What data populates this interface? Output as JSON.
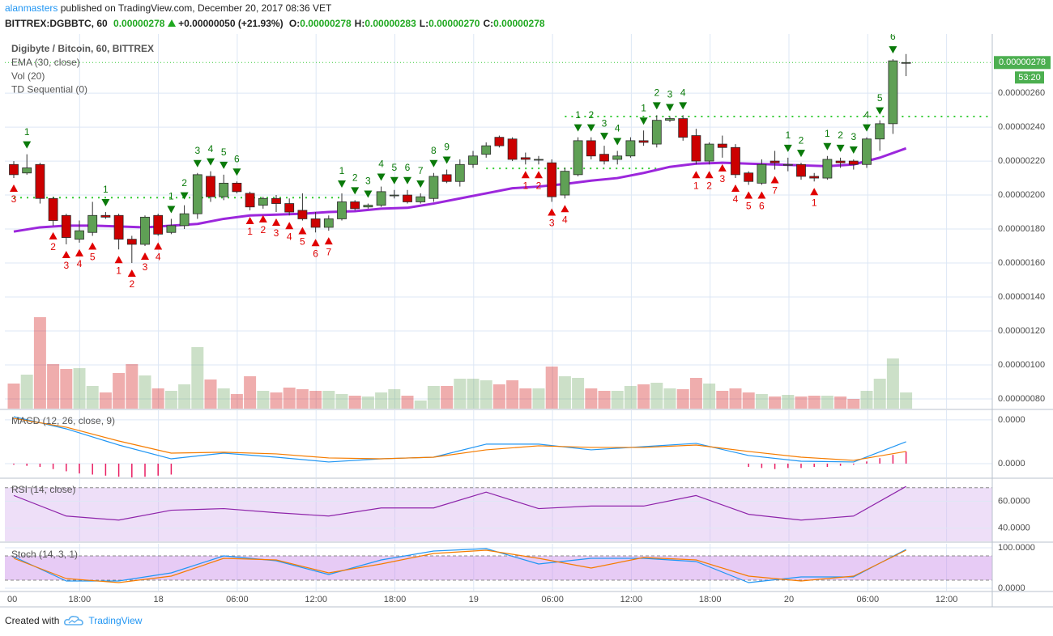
{
  "header": {
    "author": "alanmasters",
    "published": "published on TradingView.com, December 20, 2017 08:36 VET"
  },
  "quote": {
    "symbol": "BITTREX:DGBBTC, 60",
    "last": "0.00000278",
    "change": "+0.00000050 (+21.93%)",
    "ohlc": [
      {
        "key": "O:",
        "value": "0.00000278"
      },
      {
        "key": "H:",
        "value": "0.00000283"
      },
      {
        "key": "L:",
        "value": "0.00000270"
      },
      {
        "key": "C:",
        "value": "0.00000278"
      }
    ]
  },
  "footer": {
    "created": "Created with",
    "brand": "TradingView"
  },
  "chart_data": [
    {
      "type": "candlestick",
      "title": "Digibyte / Bitcoin, 60, BITTREX",
      "indicators": [
        "EMA (30, close)",
        "Vol (20)",
        "TD Sequential (0)"
      ],
      "up_color": "#5fa055",
      "down_color": "#cc0000",
      "open": [
        2.18e-06,
        2.13e-06,
        2.18e-06,
        1.98e-06,
        1.88e-06,
        1.74e-06,
        1.78e-06,
        1.88e-06,
        1.88e-06,
        1.74e-06,
        1.71e-06,
        1.88e-06,
        1.78e-06,
        1.82e-06,
        1.89e-06,
        2.11e-06,
        1.99e-06,
        2.07e-06,
        2.01e-06,
        1.94e-06,
        1.98e-06,
        1.95e-06,
        1.91e-06,
        1.86e-06,
        1.81e-06,
        1.86e-06,
        1.96e-06,
        1.93e-06,
        1.94e-06,
        2e-06,
        2e-06,
        1.96e-06,
        1.98e-06,
        2.12e-06,
        2.08e-06,
        2.18e-06,
        2.24e-06,
        2.34e-06,
        2.33e-06,
        2.22e-06,
        2.21e-06,
        2.19e-06,
        2e-06,
        2.12e-06,
        2.32e-06,
        2.24e-06,
        2.21e-06,
        2.23e-06,
        2.32e-06,
        2.3e-06,
        2.44e-06,
        2.45e-06,
        2.35e-06,
        2.2e-06,
        2.3e-06,
        2.28e-06,
        2.13e-06,
        2.07e-06,
        2.2e-06,
        2.18e-06,
        2.18e-06,
        2.11e-06,
        2.1e-06,
        2.2e-06,
        2.2e-06,
        2.18e-06,
        2.33e-06,
        2.42e-06,
        2.78e-06
      ],
      "high": [
        2.2e-06,
        2.24e-06,
        2.19e-06,
        1.99e-06,
        1.89e-06,
        1.85e-06,
        1.96e-06,
        1.9e-06,
        1.89e-06,
        1.76e-06,
        1.88e-06,
        1.89e-06,
        1.86e-06,
        1.94e-06,
        2.13e-06,
        2.14e-06,
        2.12e-06,
        2.08e-06,
        2.02e-06,
        1.99e-06,
        2e-06,
        1.98e-06,
        2.01e-06,
        1.9e-06,
        1.88e-06,
        2.01e-06,
        1.97e-06,
        1.95e-06,
        2.05e-06,
        2.03e-06,
        2.03e-06,
        2.01e-06,
        2.13e-06,
        2.15e-06,
        2.21e-06,
        2.26e-06,
        2.31e-06,
        2.35e-06,
        2.34e-06,
        2.25e-06,
        2.23e-06,
        2.21e-06,
        2.16e-06,
        2.34e-06,
        2.34e-06,
        2.29e-06,
        2.26e-06,
        2.34e-06,
        2.38e-06,
        2.47e-06,
        2.46e-06,
        2.47e-06,
        2.39e-06,
        2.31e-06,
        2.35e-06,
        2.3e-06,
        2.14e-06,
        2.21e-06,
        2.26e-06,
        2.22e-06,
        2.19e-06,
        2.13e-06,
        2.23e-06,
        2.22e-06,
        2.21e-06,
        2.34e-06,
        2.44e-06,
        2.8e-06,
        2.83e-06
      ],
      "low": [
        2.1e-06,
        2.12e-06,
        1.95e-06,
        1.82e-06,
        1.71e-06,
        1.72e-06,
        1.76e-06,
        1.86e-06,
        1.68e-06,
        1.6e-06,
        1.7e-06,
        1.76e-06,
        1.77e-06,
        1.8e-06,
        1.86e-06,
        1.96e-06,
        1.97e-06,
        2.01e-06,
        1.91e-06,
        1.92e-06,
        1.9e-06,
        1.88e-06,
        1.85e-06,
        1.78e-06,
        1.79e-06,
        1.85e-06,
        1.91e-06,
        1.92e-06,
        1.93e-06,
        1.98e-06,
        1.95e-06,
        1.95e-06,
        1.96e-06,
        2.07e-06,
        2.05e-06,
        2.16e-06,
        2.22e-06,
        2.28e-06,
        2.2e-06,
        2.18e-06,
        2.18e-06,
        1.96e-06,
        1.98e-06,
        2.11e-06,
        2.21e-06,
        2.18e-06,
        2.18e-06,
        2.22e-06,
        2.29e-06,
        2.28e-06,
        2.43e-06,
        2.32e-06,
        2.18e-06,
        2.18e-06,
        2.22e-06,
        2.1e-06,
        2.06e-06,
        2.06e-06,
        2.15e-06,
        2.14e-06,
        2.09e-06,
        2.08e-06,
        2.09e-06,
        2.16e-06,
        2.15e-06,
        2.16e-06,
        2.26e-06,
        2.36e-06,
        2.7e-06
      ],
      "close": [
        2.12e-06,
        2.16e-06,
        1.98e-06,
        1.85e-06,
        1.75e-06,
        1.79e-06,
        1.88e-06,
        1.87e-06,
        1.74e-06,
        1.71e-06,
        1.87e-06,
        1.77e-06,
        1.82e-06,
        1.89e-06,
        2.12e-06,
        1.99e-06,
        2.07e-06,
        2.02e-06,
        1.93e-06,
        1.98e-06,
        1.95e-06,
        1.9e-06,
        1.86e-06,
        1.81e-06,
        1.86e-06,
        1.96e-06,
        1.92e-06,
        1.94e-06,
        2.02e-06,
        2e-06,
        1.96e-06,
        1.99e-06,
        2.11e-06,
        2.08e-06,
        2.18e-06,
        2.23e-06,
        2.29e-06,
        2.29e-06,
        2.21e-06,
        2.21e-06,
        2.21e-06,
        1.99e-06,
        2.14e-06,
        2.32e-06,
        2.23e-06,
        2.2e-06,
        2.23e-06,
        2.32e-06,
        2.31e-06,
        2.44e-06,
        2.45e-06,
        2.34e-06,
        2.2e-06,
        2.3e-06,
        2.28e-06,
        2.12e-06,
        2.08e-06,
        2.18e-06,
        2.19e-06,
        2.18e-06,
        2.11e-06,
        2.1e-06,
        2.21e-06,
        2.19e-06,
        2.18e-06,
        2.33e-06,
        2.42e-06,
        2.79e-06,
        2.78e-06
      ],
      "ylim": [
        7.43e-07,
        2.948e-06
      ],
      "yticks": [
        {
          "value": 8e-07,
          "label": "0.00000080"
        },
        {
          "value": 1e-06,
          "label": "0.00000100"
        },
        {
          "value": 1.2e-06,
          "label": "0.00000120"
        },
        {
          "value": 1.4e-06,
          "label": "0.00000140"
        },
        {
          "value": 1.6e-06,
          "label": "0.00000160"
        },
        {
          "value": 1.8e-06,
          "label": "0.00000180"
        },
        {
          "value": 2e-06,
          "label": "0.00000200"
        },
        {
          "value": 2.2e-06,
          "label": "0.00000220"
        },
        {
          "value": 2.4e-06,
          "label": "0.00000240"
        },
        {
          "value": 2.6e-06,
          "label": "0.00000260"
        }
      ],
      "grid": true,
      "time_labels": [
        "00",
        "18:00",
        "18",
        "06:00",
        "12:00",
        "18:00",
        "19",
        "06:00",
        "12:00",
        "18:00",
        "20",
        "06:00",
        "12:00"
      ],
      "ema": {
        "color": "#9c27dc",
        "x": [
          0,
          2,
          4,
          6,
          8,
          10,
          12,
          14,
          16,
          18,
          20,
          22,
          24,
          26,
          28,
          30,
          32,
          34,
          36,
          38,
          40,
          42,
          44,
          46,
          48,
          50,
          52,
          54,
          56,
          58,
          60,
          62,
          64,
          66,
          68
        ],
        "values": [
          1.785e-06,
          1.81e-06,
          1.82e-06,
          1.82e-06,
          1.815e-06,
          1.81e-06,
          1.82e-06,
          1.83e-06,
          1.86e-06,
          1.88e-06,
          1.885e-06,
          1.89e-06,
          1.9e-06,
          1.905e-06,
          1.92e-06,
          1.925e-06,
          1.95e-06,
          1.98e-06,
          2.01e-06,
          2.04e-06,
          2.05e-06,
          2.065e-06,
          2.085e-06,
          2.1e-06,
          2.13e-06,
          2.166e-06,
          2.185e-06,
          2.19e-06,
          2.185e-06,
          2.18e-06,
          2.175e-06,
          2.17e-06,
          2.18e-06,
          2.22e-06,
          2.275e-06
        ]
      },
      "volume": {
        "vlim": [
          0,
          120
        ],
        "values": [
          31,
          42,
          113,
          55,
          49,
          50,
          28,
          20,
          44,
          55,
          41,
          25,
          22,
          30,
          76,
          36,
          25,
          18,
          40,
          22,
          20,
          26,
          24,
          22,
          22,
          18,
          16,
          15,
          20,
          24,
          16,
          10,
          28,
          28,
          37,
          37,
          35,
          30,
          35,
          25,
          25,
          52,
          40,
          38,
          25,
          22,
          22,
          28,
          30,
          32,
          25,
          24,
          38,
          31,
          22,
          25,
          20,
          18,
          15,
          17,
          15,
          16,
          16,
          15,
          12,
          22,
          37,
          62,
          20
        ]
      },
      "td_sell": {
        "color": "#0a7a0a",
        "x": [
          1,
          7,
          12,
          13,
          14,
          15,
          16,
          17,
          25,
          26,
          27,
          28,
          29,
          30,
          31,
          32,
          33,
          43,
          44,
          45,
          46,
          48,
          49,
          50,
          51,
          59,
          60,
          62,
          63,
          64,
          65,
          66,
          67
        ],
        "labels": [
          "1",
          "1",
          "1",
          "2",
          "3",
          "4",
          "5",
          "6",
          "1",
          "2",
          "3",
          "4",
          "5",
          "6",
          "7",
          "8",
          "9",
          "1",
          "2",
          "3",
          "4",
          "1",
          "2",
          "3",
          "4",
          "1",
          "2",
          "1",
          "2",
          "3",
          "4",
          "5",
          "6"
        ]
      },
      "td_buy": {
        "color": "#e00000",
        "x": [
          0,
          3,
          4,
          5,
          6,
          8,
          9,
          10,
          11,
          18,
          19,
          20,
          21,
          22,
          23,
          24,
          39,
          40,
          41,
          42,
          52,
          53,
          54,
          55,
          56,
          57,
          58,
          61
        ],
        "labels": [
          "3",
          "2",
          "3",
          "4",
          "5",
          "1",
          "2",
          "3",
          "4",
          "1",
          "2",
          "3",
          "4",
          "5",
          "6",
          "7",
          "1",
          "2",
          "3",
          "4",
          "1",
          "2",
          "3",
          "4",
          "5",
          "6",
          "7",
          "1"
        ]
      },
      "levels": [
        {
          "value": 1.985e-06,
          "from": 0,
          "to": 25
        },
        {
          "value": 2.157e-06,
          "from": 36,
          "to": 49
        },
        {
          "value": 2.462e-06,
          "from": 42,
          "to": 68
        }
      ],
      "level_color": "#33cc33",
      "last_price": {
        "value": 2.78e-06,
        "label": "0.00000278"
      },
      "countdown": "53:20"
    },
    {
      "type": "macd",
      "title": "MACD (12, 26, close, 9)",
      "ylim": [
        -1.26e-08,
        4.88e-08
      ],
      "yticks": [
        {
          "value": 0,
          "label": "0.0000"
        },
        {
          "value": 4e-08,
          "label": "0.0000"
        }
      ],
      "series": [
        {
          "color": "#2196f3",
          "x": [
            0,
            4,
            8,
            12,
            16,
            20,
            24,
            28,
            32,
            36,
            40,
            44,
            48,
            52,
            56,
            60,
            64,
            68
          ],
          "values": [
            4.29e-08,
            3.18e-08,
            1.7e-08,
            4.4e-09,
            9.6e-09,
            5.9e-09,
            1.5e-09,
            4.4e-09,
            5.9e-09,
            1.78e-08,
            1.78e-08,
            1.26e-08,
            1.55e-08,
            1.85e-08,
            7.4e-09,
            2.2e-09,
            1.5e-09,
            2e-08
          ]
        },
        {
          "color": "#f57c00",
          "x": [
            0,
            4,
            8,
            12,
            16,
            20,
            24,
            28,
            32,
            36,
            40,
            44,
            48,
            52,
            56,
            60,
            64,
            68
          ],
          "values": [
            4.14e-08,
            3.33e-08,
            2.07e-08,
            9.6e-09,
            1.04e-08,
            8.9e-09,
            5.2e-09,
            4.4e-09,
            5.9e-09,
            1.26e-08,
            1.63e-08,
            1.48e-08,
            1.48e-08,
            1.7e-08,
            1.11e-08,
            5.9e-09,
            3e-09,
            1.11e-08
          ]
        }
      ],
      "histogram": {
        "color": "#e91e63",
        "x": [
          0,
          1,
          2,
          3,
          4,
          5,
          6,
          7,
          8,
          9,
          10,
          11,
          12,
          56,
          57,
          58,
          59,
          60,
          61,
          62,
          63,
          64,
          65,
          66,
          67,
          68
        ],
        "values": [
          -1e-09,
          -2e-09,
          -3e-09,
          -5e-09,
          -7e-09,
          -9e-09,
          -1e-08,
          -1.1e-08,
          -1.2e-08,
          -1.3e-08,
          -1.2e-08,
          -1.1e-08,
          -1e-08,
          -3e-09,
          -4e-09,
          -5e-09,
          -4e-09,
          -4e-09,
          -3e-09,
          -3e-09,
          -2e-09,
          -1e-09,
          2e-09,
          5e-09,
          8e-09,
          1.1e-08
        ]
      }
    },
    {
      "type": "line",
      "title": "RSI (14, close)",
      "ylim": [
        30.3,
        76.4
      ],
      "yticks": [
        {
          "value": 60,
          "label": "60.0000"
        },
        {
          "value": 40,
          "label": "40.0000"
        }
      ],
      "band": [
        30,
        70
      ],
      "band_color": "#d9b8ef",
      "series": [
        {
          "color": "#8e24aa",
          "x": [
            0,
            4,
            8,
            12,
            16,
            20,
            24,
            28,
            32,
            36,
            40,
            44,
            48,
            52,
            56,
            60,
            64,
            68
          ],
          "values": [
            64.2,
            49,
            46,
            53.3,
            54.5,
            51.5,
            49,
            55,
            55,
            66.7,
            54.5,
            56.4,
            56.4,
            64.2,
            50.3,
            46,
            49,
            70.9
          ]
        }
      ]
    },
    {
      "type": "line",
      "title": "Stoch (14, 3, 1)",
      "ylim": [
        -6,
        110
      ],
      "yticks": [
        {
          "value": 100,
          "label": "100.0000"
        },
        {
          "value": 0,
          "label": "0.0000"
        }
      ],
      "band": [
        20,
        80
      ],
      "band_color": "#c98be8",
      "series": [
        {
          "color": "#2196f3",
          "x": [
            0,
            4,
            8,
            12,
            16,
            20,
            24,
            28,
            32,
            36,
            40,
            44,
            48,
            52,
            56,
            60,
            64,
            68
          ],
          "values": [
            78,
            18,
            18,
            38,
            80,
            68,
            34,
            70,
            92,
            98,
            60,
            74,
            74,
            66,
            14,
            28,
            28,
            96
          ]
        },
        {
          "color": "#f57c00",
          "x": [
            0,
            4,
            8,
            12,
            16,
            20,
            24,
            28,
            32,
            36,
            40,
            44,
            48,
            52,
            56,
            60,
            64,
            68
          ],
          "values": [
            74,
            24,
            14,
            30,
            74,
            70,
            38,
            60,
            86,
            94,
            74,
            50,
            76,
            70,
            30,
            18,
            30,
            94
          ]
        }
      ]
    }
  ]
}
